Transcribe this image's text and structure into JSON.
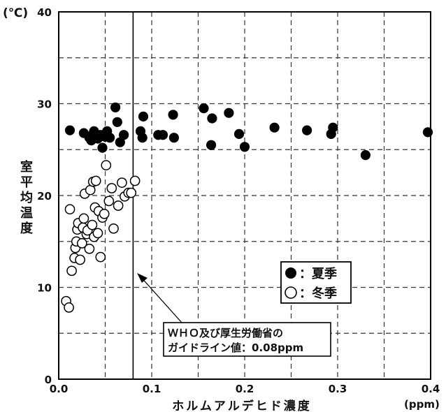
{
  "chart_data": {
    "type": "scatter",
    "title": "",
    "xlabel": "ホルムアルデヒド濃度",
    "xunit": "(ppm)",
    "ylabel": "室平均温度",
    "yunit": "(℃)",
    "xlim": [
      0,
      0.4
    ],
    "ylim": [
      0,
      40
    ],
    "xticks": [
      "0.0",
      "0.1",
      "0.2",
      "0.3",
      "0.4"
    ],
    "yticks": [
      "0",
      "10",
      "20",
      "30",
      "40"
    ],
    "grid": true,
    "legend_position": "lower-right",
    "series": [
      {
        "name": "夏季",
        "marker": "filled-circle",
        "color": "#000000",
        "points": [
          [
            0.012,
            27.1
          ],
          [
            0.027,
            26.8
          ],
          [
            0.033,
            26.3
          ],
          [
            0.035,
            26.0
          ],
          [
            0.037,
            26.7
          ],
          [
            0.038,
            27.0
          ],
          [
            0.042,
            26.2
          ],
          [
            0.045,
            26.6
          ],
          [
            0.047,
            25.2
          ],
          [
            0.05,
            26.4
          ],
          [
            0.052,
            27.0
          ],
          [
            0.055,
            26.3
          ],
          [
            0.061,
            29.6
          ],
          [
            0.063,
            28.0
          ],
          [
            0.066,
            25.8
          ],
          [
            0.07,
            26.6
          ],
          [
            0.088,
            27.0
          ],
          [
            0.09,
            26.3
          ],
          [
            0.091,
            28.6
          ],
          [
            0.107,
            26.6
          ],
          [
            0.112,
            26.6
          ],
          [
            0.123,
            28.8
          ],
          [
            0.124,
            26.3
          ],
          [
            0.156,
            29.5
          ],
          [
            0.164,
            25.5
          ],
          [
            0.165,
            28.4
          ],
          [
            0.183,
            29.0
          ],
          [
            0.194,
            26.7
          ],
          [
            0.2,
            25.3
          ],
          [
            0.232,
            27.4
          ],
          [
            0.267,
            27.1
          ],
          [
            0.293,
            26.7
          ],
          [
            0.295,
            27.4
          ],
          [
            0.33,
            24.4
          ],
          [
            0.397,
            26.9
          ]
        ]
      },
      {
        "name": "冬季",
        "marker": "open-circle",
        "color": "#000000",
        "points": [
          [
            0.008,
            8.5
          ],
          [
            0.011,
            7.8
          ],
          [
            0.012,
            18.5
          ],
          [
            0.014,
            11.8
          ],
          [
            0.017,
            13.2
          ],
          [
            0.018,
            14.3
          ],
          [
            0.019,
            15.0
          ],
          [
            0.02,
            16.3
          ],
          [
            0.021,
            17.0
          ],
          [
            0.023,
            13.0
          ],
          [
            0.025,
            14.8
          ],
          [
            0.026,
            16.5
          ],
          [
            0.027,
            17.5
          ],
          [
            0.028,
            20.2
          ],
          [
            0.03,
            15.8
          ],
          [
            0.031,
            16.2
          ],
          [
            0.033,
            14.2
          ],
          [
            0.034,
            20.6
          ],
          [
            0.036,
            16.8
          ],
          [
            0.037,
            21.5
          ],
          [
            0.038,
            15.5
          ],
          [
            0.039,
            18.7
          ],
          [
            0.04,
            21.6
          ],
          [
            0.042,
            15.9
          ],
          [
            0.043,
            18.3
          ],
          [
            0.045,
            13.3
          ],
          [
            0.047,
            17.6
          ],
          [
            0.049,
            18.0
          ],
          [
            0.051,
            23.3
          ],
          [
            0.054,
            19.4
          ],
          [
            0.057,
            20.8
          ],
          [
            0.059,
            16.4
          ],
          [
            0.064,
            18.9
          ],
          [
            0.068,
            21.4
          ],
          [
            0.071,
            19.9
          ],
          [
            0.075,
            20.3
          ],
          [
            0.078,
            20.3
          ],
          [
            0.082,
            21.6
          ]
        ]
      }
    ],
    "reference_line": {
      "x": 0.08,
      "label_line1": "ＷＨＯ及び厚生労働省の",
      "label_line2": "ガイドライン値：0.08ppm"
    }
  },
  "legend": [
    {
      "label": "：夏季"
    },
    {
      "label": "：冬季"
    }
  ]
}
